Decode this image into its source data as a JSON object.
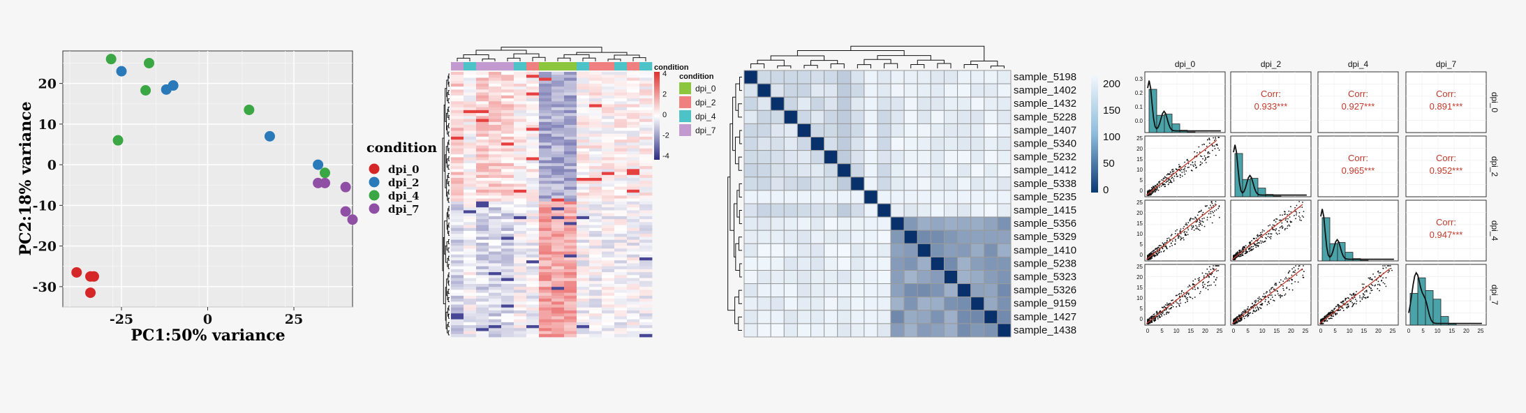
{
  "chart_data": [
    {
      "type": "scatter",
      "xlabel": "PC1:50% variance",
      "ylabel": "PC2:18% variance",
      "xlim": [
        -42,
        42
      ],
      "ylim": [
        -35,
        28
      ],
      "xticks": [
        -25,
        0,
        25
      ],
      "yticks": [
        -30,
        -20,
        -10,
        0,
        10,
        20
      ],
      "grid": true,
      "legend": {
        "title": "condition",
        "position": "right"
      },
      "series": [
        {
          "name": "dpi_0",
          "color": "#d62728",
          "points": [
            [
              -38,
              -26.5
            ],
            [
              -34,
              -27.5
            ],
            [
              -33,
              -27.5
            ],
            [
              -34,
              -31.5
            ]
          ]
        },
        {
          "name": "dpi_2",
          "color": "#2a7ab9",
          "points": [
            [
              -25,
              23
            ],
            [
              -12,
              18.5
            ],
            [
              -10,
              19.5
            ],
            [
              18,
              7
            ],
            [
              32,
              0
            ]
          ]
        },
        {
          "name": "dpi_4",
          "color": "#3aa744",
          "points": [
            [
              -28,
              26
            ],
            [
              -17,
              25
            ],
            [
              -18,
              18.3
            ],
            [
              -26,
              6
            ],
            [
              12,
              13.5
            ],
            [
              34,
              -2
            ]
          ]
        },
        {
          "name": "dpi_7",
          "color": "#8e4fa4",
          "points": [
            [
              32,
              -4.5
            ],
            [
              34,
              -4.5
            ],
            [
              40,
              -5.5
            ],
            [
              40,
              -11.5
            ],
            [
              42,
              -13.5
            ]
          ]
        }
      ]
    },
    {
      "type": "heatmap",
      "legend": {
        "title": "condition",
        "items": [
          {
            "label": "dpi_0",
            "color": "#8cc63f"
          },
          {
            "label": "dpi_2",
            "color": "#f08080"
          },
          {
            "label": "dpi_4",
            "color": "#4dc3c8"
          },
          {
            "label": "dpi_7",
            "color": "#c29ad0"
          }
        ]
      },
      "colorbar": {
        "ticks": [
          "4",
          "2",
          "0",
          "-2",
          "-4"
        ],
        "range": [
          -4,
          4
        ]
      },
      "column_conditions": [
        "dpi_7",
        "dpi_4",
        "dpi_7",
        "dpi_7",
        "dpi_7",
        "dpi_4",
        "dpi_2",
        "dpi_0",
        "dpi_0",
        "dpi_0",
        "dpi_4",
        "dpi_2",
        "dpi_2",
        "dpi_4",
        "dpi_2",
        "dpi_4"
      ]
    },
    {
      "type": "heatmap",
      "samples": [
        "sample_5198",
        "sample_1402",
        "sample_1432",
        "sample_5228",
        "sample_1407",
        "sample_5340",
        "sample_5232",
        "sample_1412",
        "sample_5338",
        "sample_5235",
        "sample_1415",
        "sample_5356",
        "sample_5329",
        "sample_1410",
        "sample_5238",
        "sample_5323",
        "sample_5326",
        "sample_9159",
        "sample_1427",
        "sample_1438"
      ],
      "colorbar": {
        "ticks": [
          "200",
          "150",
          "100",
          "50",
          "0"
        ],
        "range": [
          0,
          220
        ]
      }
    },
    {
      "type": "scatter",
      "panels": [
        "dpi_0",
        "dpi_2",
        "dpi_4",
        "dpi_7"
      ],
      "correlations": [
        {
          "row": "dpi_0",
          "col": "dpi_2",
          "label": "Corr:",
          "value": "0.933***"
        },
        {
          "row": "dpi_0",
          "col": "dpi_4",
          "label": "Corr:",
          "value": "0.927***"
        },
        {
          "row": "dpi_0",
          "col": "dpi_7",
          "label": "Corr:",
          "value": "0.891***"
        },
        {
          "row": "dpi_2",
          "col": "dpi_4",
          "label": "Corr:",
          "value": "0.965***"
        },
        {
          "row": "dpi_2",
          "col": "dpi_7",
          "label": "Corr:",
          "value": "0.952***"
        },
        {
          "row": "dpi_4",
          "col": "dpi_7",
          "label": "Corr:",
          "value": "0.947***"
        }
      ],
      "x_ticks": [
        "0",
        "5",
        "10",
        "15",
        "20",
        "25"
      ],
      "density_yticks": [
        "0.3",
        "0.2",
        "0.1",
        "0.0"
      ],
      "y_ticks": [
        "25",
        "20",
        "15",
        "10",
        "5",
        "0"
      ]
    }
  ]
}
